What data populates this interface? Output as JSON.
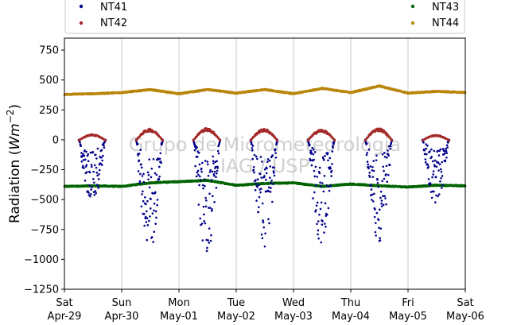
{
  "chart_data": {
    "type": "scatter",
    "title": "",
    "ylabel": "Radiation (Wm⁻²)",
    "ylabel_parts": {
      "main": "Radiation (",
      "unit": "Wm",
      "exp": "−2",
      "close": ")"
    },
    "ylim": [
      -1250,
      850
    ],
    "yticks": [
      -1250,
      -1000,
      -750,
      -500,
      -250,
      0,
      250,
      500,
      750
    ],
    "ytick_labels": [
      "−1250",
      "−1000",
      "−750",
      "−500",
      "−250",
      "0",
      "250",
      "500",
      "750"
    ],
    "xlim": [
      0,
      7
    ],
    "x_unit": "days since Sat Apr-29 00:00",
    "xticks": [
      {
        "x": 0,
        "line1": "Sat",
        "line2": "Apr-29"
      },
      {
        "x": 1,
        "line1": "Sun",
        "line2": "Apr-30"
      },
      {
        "x": 2,
        "line1": "Mon",
        "line2": "May-01"
      },
      {
        "x": 3,
        "line1": "Tue",
        "line2": "May-02"
      },
      {
        "x": 4,
        "line1": "Wed",
        "line2": "May-03"
      },
      {
        "x": 5,
        "line1": "Thu",
        "line2": "May-04"
      },
      {
        "x": 6,
        "line1": "Fri",
        "line2": "May-05"
      },
      {
        "x": 7,
        "line1": "Sat",
        "line2": "May-06"
      }
    ],
    "grid": "vertical",
    "legend_position": "top",
    "watermark": {
      "line1": "Grupo de Micrometeorologia",
      "line2": "IAG / USP"
    },
    "series": [
      {
        "name": "NT41",
        "color": "#00008b",
        "style": "net-shortwave",
        "days": [
          {
            "day": 0,
            "min": -540
          },
          {
            "day": 1,
            "min": -960
          },
          {
            "day": 2,
            "min": -970
          },
          {
            "day": 3,
            "min": -940
          },
          {
            "day": 4,
            "min": -870
          },
          {
            "day": 5,
            "min": -890
          },
          {
            "day": 6,
            "min": -540
          }
        ]
      },
      {
        "name": "NT42",
        "color": "#a52a2a",
        "style": "reflected",
        "days": [
          {
            "day": 0,
            "peak": 45
          },
          {
            "day": 1,
            "peak": 85
          },
          {
            "day": 2,
            "peak": 90
          },
          {
            "day": 3,
            "peak": 85
          },
          {
            "day": 4,
            "peak": 80
          },
          {
            "day": 5,
            "peak": 90
          },
          {
            "day": 6,
            "peak": 40
          }
        ]
      },
      {
        "name": "NT43",
        "color": "#006400",
        "style": "longwave-out",
        "x": [
          0,
          0.5,
          1,
          1.5,
          2,
          2.5,
          3,
          3.5,
          4,
          4.5,
          5,
          5.5,
          6,
          6.5,
          7
        ],
        "values": [
          -390,
          -385,
          -390,
          -360,
          -350,
          -340,
          -380,
          -365,
          -360,
          -390,
          -370,
          -385,
          -395,
          -380,
          -385
        ]
      },
      {
        "name": "NT44",
        "color": "#b8860b",
        "style": "longwave-in",
        "x": [
          0,
          0.5,
          1,
          1.5,
          2,
          2.5,
          3,
          3.5,
          4,
          4.5,
          5,
          5.5,
          6,
          6.5,
          7
        ],
        "values": [
          380,
          385,
          395,
          420,
          385,
          420,
          390,
          420,
          385,
          430,
          395,
          450,
          390,
          405,
          395
        ]
      }
    ]
  }
}
